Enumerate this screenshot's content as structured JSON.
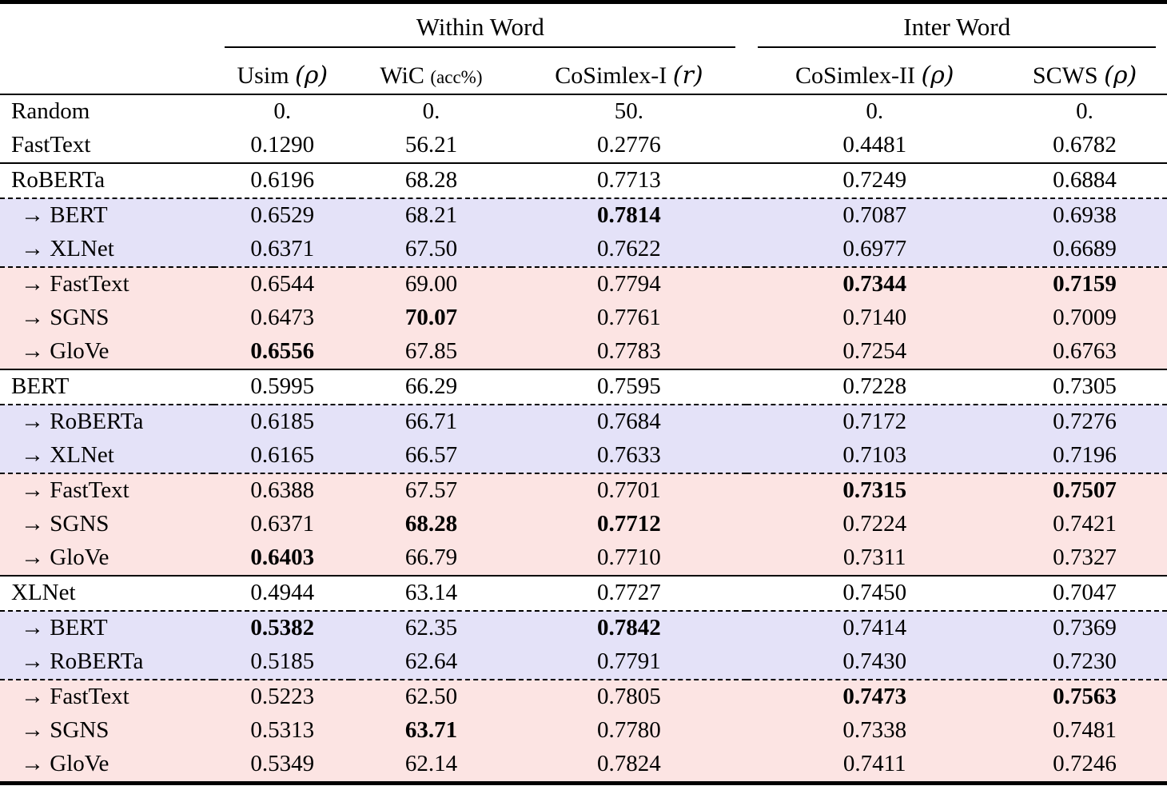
{
  "table": {
    "groups": [
      {
        "label": "Within Word"
      },
      {
        "label": "Inter Word"
      }
    ],
    "columns": [
      {
        "name": "Usim",
        "suffix": "ρ",
        "suffix_style": "math"
      },
      {
        "name": "WiC",
        "suffix": "acc%",
        "suffix_style": "small"
      },
      {
        "name": "CoSimlex-I",
        "suffix": "r",
        "suffix_style": "math"
      },
      {
        "name": "CoSimlex-II",
        "suffix": "ρ",
        "suffix_style": "math"
      },
      {
        "name": "SCWS",
        "suffix": "ρ",
        "suffix_style": "math"
      }
    ],
    "colors": {
      "blue_row": "#e4e2f8",
      "pink_row": "#fce4e3"
    },
    "rows": [
      {
        "label": "Random",
        "bg": "white",
        "border_top": "none",
        "values": [
          "0.",
          "0.",
          "50.",
          "0.",
          "0."
        ],
        "bold": [
          false,
          false,
          false,
          false,
          false
        ]
      },
      {
        "label": "FastText",
        "bg": "white",
        "border_top": "none",
        "values": [
          "0.1290",
          "56.21",
          "0.2776",
          "0.4481",
          "0.6782"
        ],
        "bold": [
          false,
          false,
          false,
          false,
          false
        ]
      },
      {
        "label": "RoBERTa",
        "bg": "white",
        "border_top": "solid",
        "values": [
          "0.6196",
          "68.28",
          "0.7713",
          "0.7249",
          "0.6884"
        ],
        "bold": [
          false,
          false,
          false,
          false,
          false
        ]
      },
      {
        "label": "→ BERT",
        "bg": "blue",
        "border_top": "dashed",
        "values": [
          "0.6529",
          "68.21",
          "0.7814",
          "0.7087",
          "0.6938"
        ],
        "bold": [
          false,
          false,
          true,
          false,
          false
        ]
      },
      {
        "label": "→ XLNet",
        "bg": "blue",
        "border_top": "none",
        "values": [
          "0.6371",
          "67.50",
          "0.7622",
          "0.6977",
          "0.6689"
        ],
        "bold": [
          false,
          false,
          false,
          false,
          false
        ]
      },
      {
        "label": "→ FastText",
        "bg": "pink",
        "border_top": "dashed",
        "values": [
          "0.6544",
          "69.00",
          "0.7794",
          "0.7344",
          "0.7159"
        ],
        "bold": [
          false,
          false,
          false,
          true,
          true
        ]
      },
      {
        "label": "→ SGNS",
        "bg": "pink",
        "border_top": "none",
        "values": [
          "0.6473",
          "70.07",
          "0.7761",
          "0.7140",
          "0.7009"
        ],
        "bold": [
          false,
          true,
          false,
          false,
          false
        ]
      },
      {
        "label": "→ GloVe",
        "bg": "pink",
        "border_top": "none",
        "values": [
          "0.6556",
          "67.85",
          "0.7783",
          "0.7254",
          "0.6763"
        ],
        "bold": [
          true,
          false,
          false,
          false,
          false
        ]
      },
      {
        "label": "BERT",
        "bg": "white",
        "border_top": "solid",
        "values": [
          "0.5995",
          "66.29",
          "0.7595",
          "0.7228",
          "0.7305"
        ],
        "bold": [
          false,
          false,
          false,
          false,
          false
        ]
      },
      {
        "label": "→ RoBERTa",
        "bg": "blue",
        "border_top": "dashed",
        "values": [
          "0.6185",
          "66.71",
          "0.7684",
          "0.7172",
          "0.7276"
        ],
        "bold": [
          false,
          false,
          false,
          false,
          false
        ]
      },
      {
        "label": "→ XLNet",
        "bg": "blue",
        "border_top": "none",
        "values": [
          "0.6165",
          "66.57",
          "0.7633",
          "0.7103",
          "0.7196"
        ],
        "bold": [
          false,
          false,
          false,
          false,
          false
        ]
      },
      {
        "label": "→ FastText",
        "bg": "pink",
        "border_top": "dashed",
        "values": [
          "0.6388",
          "67.57",
          "0.7701",
          "0.7315",
          "0.7507"
        ],
        "bold": [
          false,
          false,
          false,
          true,
          true
        ]
      },
      {
        "label": "→ SGNS",
        "bg": "pink",
        "border_top": "none",
        "values": [
          "0.6371",
          "68.28",
          "0.7712",
          "0.7224",
          "0.7421"
        ],
        "bold": [
          false,
          true,
          true,
          false,
          false
        ]
      },
      {
        "label": "→ GloVe",
        "bg": "pink",
        "border_top": "none",
        "values": [
          "0.6403",
          "66.79",
          "0.7710",
          "0.7311",
          "0.7327"
        ],
        "bold": [
          true,
          false,
          false,
          false,
          false
        ]
      },
      {
        "label": "XLNet",
        "bg": "white",
        "border_top": "solid",
        "values": [
          "0.4944",
          "63.14",
          "0.7727",
          "0.7450",
          "0.7047"
        ],
        "bold": [
          false,
          false,
          false,
          false,
          false
        ]
      },
      {
        "label": "→ BERT",
        "bg": "blue",
        "border_top": "dashed",
        "values": [
          "0.5382",
          "62.35",
          "0.7842",
          "0.7414",
          "0.7369"
        ],
        "bold": [
          true,
          false,
          true,
          false,
          false
        ]
      },
      {
        "label": "→ RoBERTa",
        "bg": "blue",
        "border_top": "none",
        "values": [
          "0.5185",
          "62.64",
          "0.7791",
          "0.7430",
          "0.7230"
        ],
        "bold": [
          false,
          false,
          false,
          false,
          false
        ]
      },
      {
        "label": "→ FastText",
        "bg": "pink",
        "border_top": "dashed",
        "values": [
          "0.5223",
          "62.50",
          "0.7805",
          "0.7473",
          "0.7563"
        ],
        "bold": [
          false,
          false,
          false,
          true,
          true
        ]
      },
      {
        "label": "→ SGNS",
        "bg": "pink",
        "border_top": "none",
        "values": [
          "0.5313",
          "63.71",
          "0.7780",
          "0.7338",
          "0.7481"
        ],
        "bold": [
          false,
          true,
          false,
          false,
          false
        ]
      },
      {
        "label": "→ GloVe",
        "bg": "pink",
        "border_top": "none",
        "values": [
          "0.5349",
          "62.14",
          "0.7824",
          "0.7411",
          "0.7246"
        ],
        "bold": [
          false,
          false,
          false,
          false,
          false
        ]
      }
    ]
  }
}
